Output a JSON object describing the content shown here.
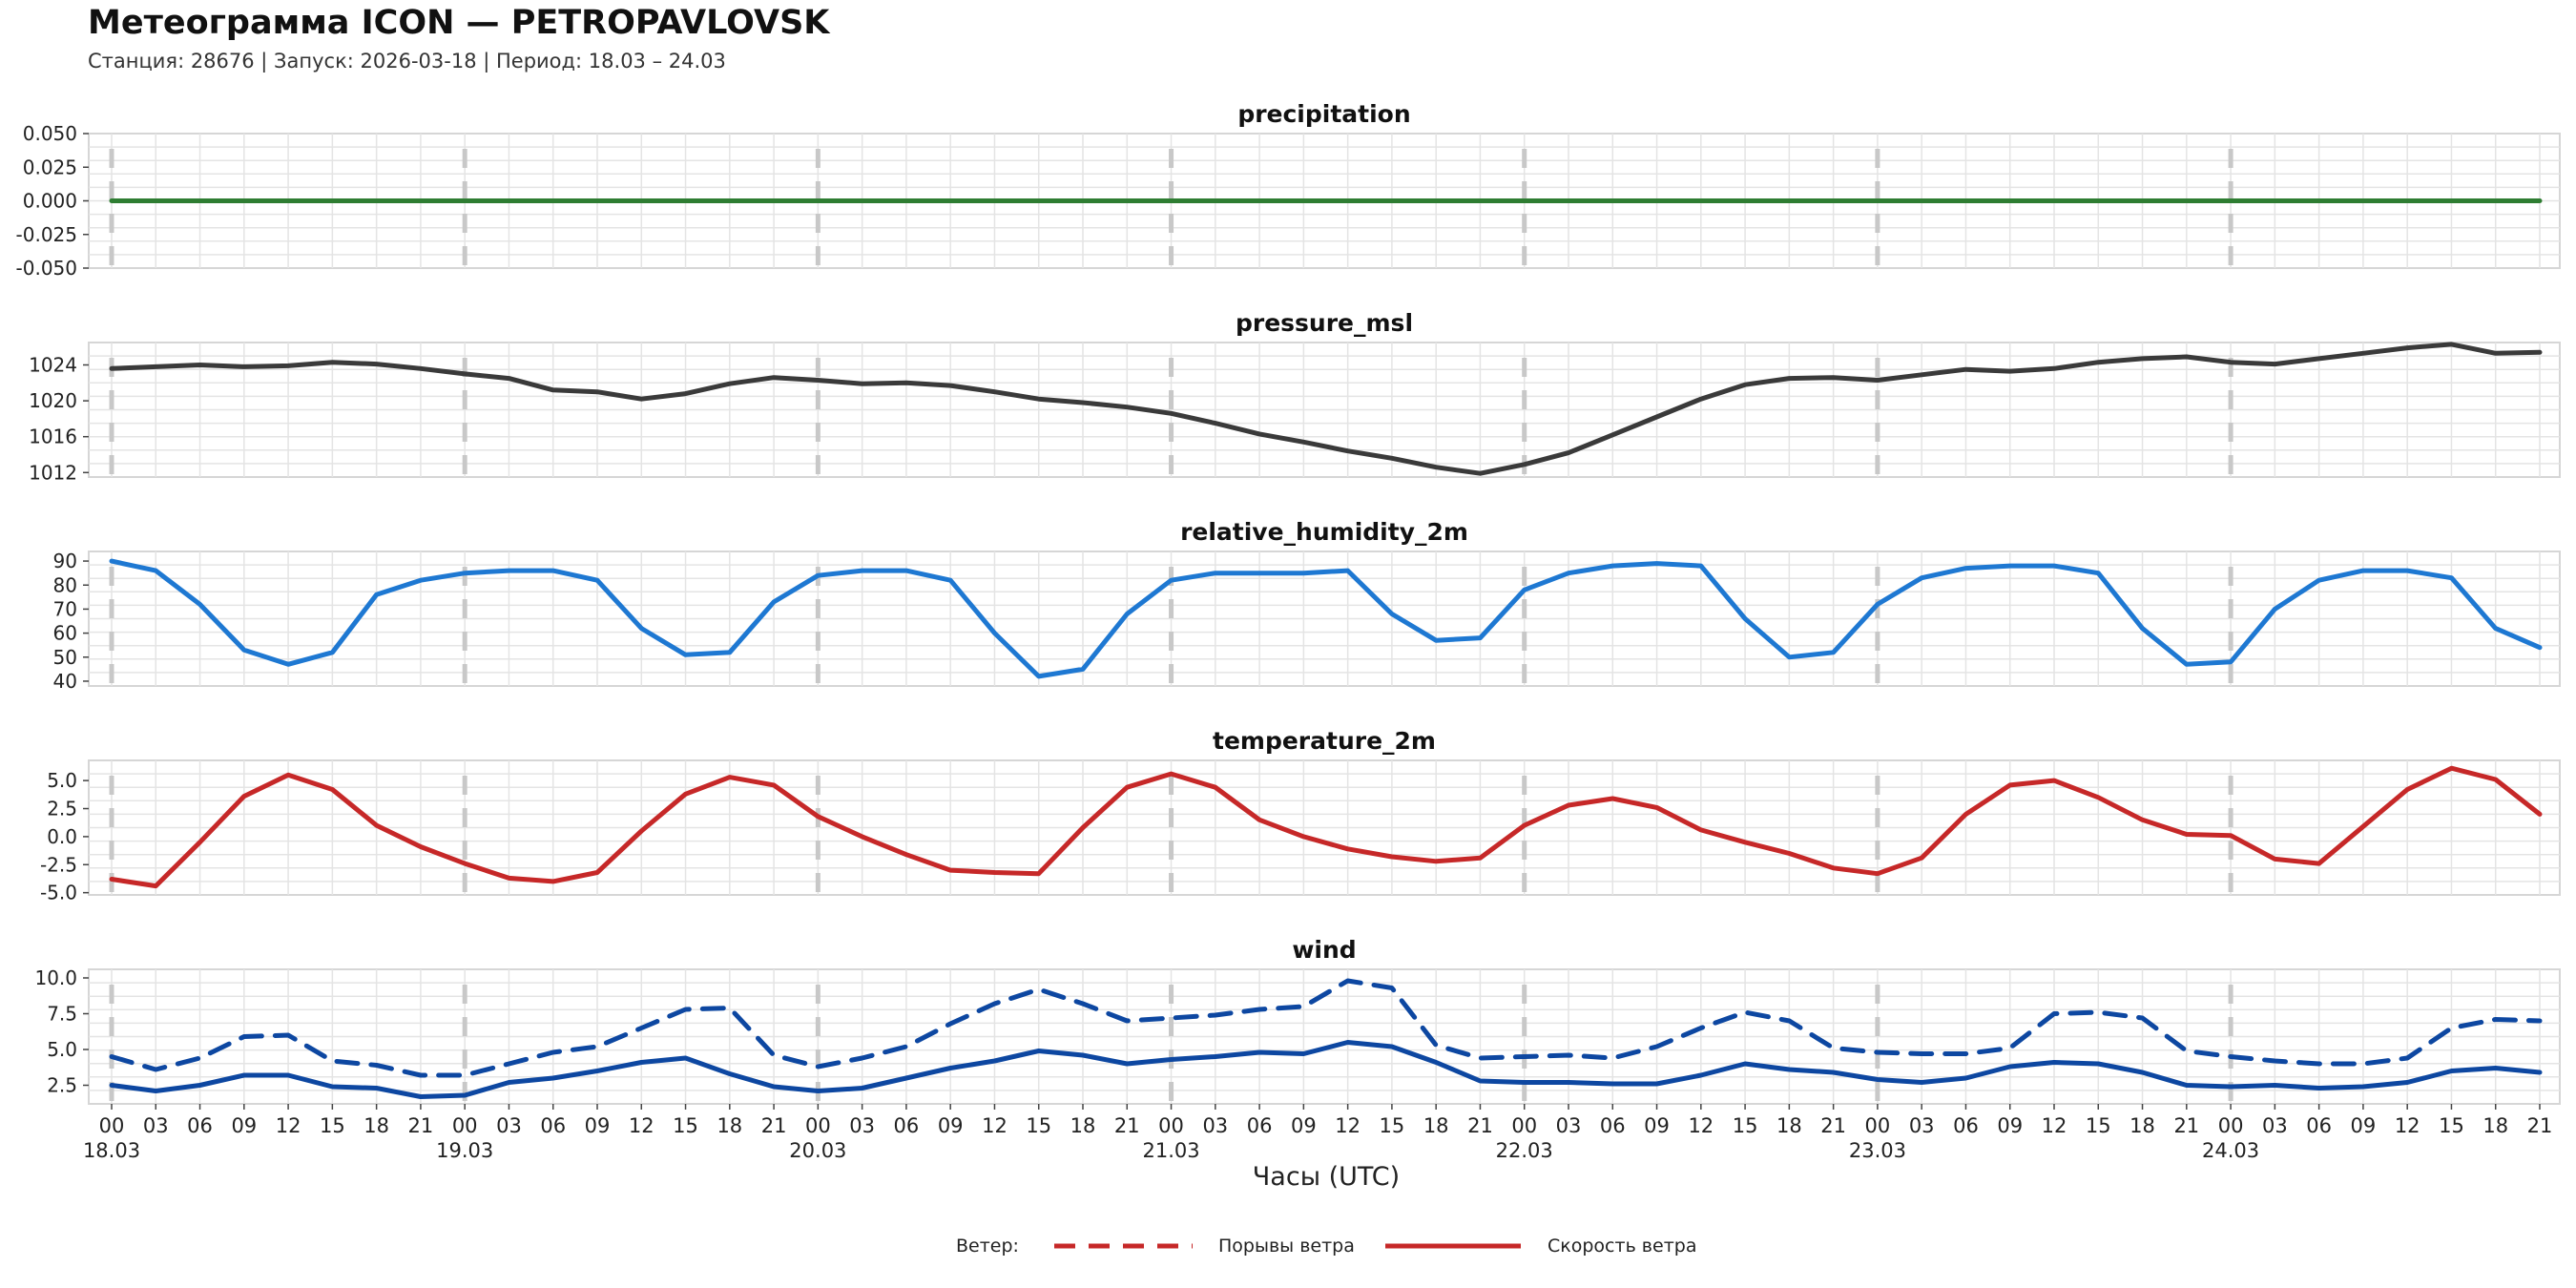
{
  "header": {
    "title": "Метеограмма ICON — PETROPAVLOVSK",
    "subtitle": "Станция: 28676  | Запуск: 2026-03-18  | Период: 18.03 – 24.03"
  },
  "legend": {
    "title": "Ветер:",
    "gust_label": "Порывы ветра",
    "speed_label": "Скорость ветра"
  },
  "colors": {
    "precip": "#2e7d32",
    "pressure": "#3a3a3a",
    "humidity": "#1e78d2",
    "temperature": "#c62828",
    "wind": "#0d47a1",
    "legend_line": "#c62828",
    "grid": "#e4e4e4",
    "day_divider": "#c8c8c8"
  },
  "chart_data": {
    "type": "line",
    "x_label": "Часы (UTC)",
    "x_step_hours": 3,
    "x_hour_ticks": [
      "00",
      "03",
      "06",
      "09",
      "12",
      "15",
      "18",
      "21",
      "00",
      "03",
      "06",
      "09",
      "12",
      "15",
      "18",
      "21",
      "00",
      "03",
      "06",
      "09",
      "12",
      "15",
      "18",
      "21",
      "00",
      "03",
      "06",
      "09",
      "12",
      "15",
      "18",
      "21",
      "00",
      "03",
      "06",
      "09",
      "12",
      "15",
      "18",
      "21",
      "00",
      "03",
      "06",
      "09",
      "12",
      "15",
      "18",
      "21",
      "00",
      "03",
      "06",
      "09",
      "12",
      "15",
      "18",
      "21"
    ],
    "x_day_labels": [
      "18.03",
      "19.03",
      "20.03",
      "21.03",
      "22.03",
      "23.03",
      "24.03"
    ],
    "panels": [
      {
        "key": "precip",
        "title": "precipitation",
        "ylim": [
          -0.05,
          0.05
        ],
        "yticks": [
          0.05,
          0.025,
          0.0,
          -0.025,
          -0.05
        ],
        "ytick_labels": [
          "0.050",
          "0.025",
          "0.000",
          "-0.025",
          "-0.050"
        ],
        "series": [
          {
            "name": "precipitation",
            "color_key": "precip",
            "style": "solid",
            "values": [
              0,
              0,
              0,
              0,
              0,
              0,
              0,
              0,
              0,
              0,
              0,
              0,
              0,
              0,
              0,
              0,
              0,
              0,
              0,
              0,
              0,
              0,
              0,
              0,
              0,
              0,
              0,
              0,
              0,
              0,
              0,
              0,
              0,
              0,
              0,
              0,
              0,
              0,
              0,
              0,
              0,
              0,
              0,
              0,
              0,
              0,
              0,
              0,
              0,
              0,
              0,
              0,
              0,
              0,
              0,
              0
            ]
          }
        ]
      },
      {
        "key": "pressure",
        "title": "pressure_msl",
        "ylim": [
          1011.5,
          1026.5
        ],
        "yticks": [
          1024,
          1020,
          1016,
          1012
        ],
        "ytick_labels": [
          "1024",
          "1020",
          "1016",
          "1012"
        ],
        "series": [
          {
            "name": "pressure_msl",
            "color_key": "pressure",
            "style": "solid",
            "values": [
              1023.6,
              1023.8,
              1024.0,
              1023.8,
              1023.9,
              1024.3,
              1024.1,
              1023.6,
              1023.0,
              1022.5,
              1021.2,
              1021.0,
              1020.2,
              1020.8,
              1021.9,
              1022.6,
              1022.3,
              1021.9,
              1022.0,
              1021.7,
              1021.0,
              1020.2,
              1019.8,
              1019.3,
              1018.6,
              1017.5,
              1016.3,
              1015.4,
              1014.4,
              1013.6,
              1012.6,
              1011.9,
              1012.9,
              1014.2,
              1016.2,
              1018.2,
              1020.2,
              1021.8,
              1022.5,
              1022.6,
              1022.3,
              1022.9,
              1023.5,
              1023.3,
              1023.6,
              1024.3,
              1024.7,
              1024.9,
              1024.3,
              1024.1,
              1024.7,
              1025.3,
              1025.9,
              1026.3,
              1025.3,
              1025.4
            ]
          }
        ]
      },
      {
        "key": "humidity",
        "title": "relative_humidity_2m",
        "ylim": [
          38,
          94
        ],
        "yticks": [
          90,
          80,
          70,
          60,
          50,
          40
        ],
        "ytick_labels": [
          "90",
          "80",
          "70",
          "60",
          "50",
          "40"
        ],
        "series": [
          {
            "name": "relative_humidity_2m",
            "color_key": "humidity",
            "style": "solid",
            "values": [
              90,
              86,
              72,
              53,
              47,
              52,
              76,
              82,
              85,
              86,
              86,
              82,
              62,
              51,
              52,
              73,
              84,
              86,
              86,
              82,
              60,
              42,
              45,
              68,
              82,
              85,
              85,
              85,
              86,
              68,
              57,
              58,
              78,
              85,
              88,
              89,
              88,
              66,
              50,
              52,
              72,
              83,
              87,
              88,
              88,
              85,
              62,
              47,
              48,
              70,
              82,
              86,
              86,
              83,
              62,
              54
            ]
          }
        ]
      },
      {
        "key": "temperature",
        "title": "temperature_2m",
        "ylim": [
          -5.2,
          6.8
        ],
        "yticks": [
          5.0,
          2.5,
          0.0,
          -2.5,
          -5.0
        ],
        "ytick_labels": [
          "5.0",
          "2.5",
          "0.0",
          "-2.5",
          "-5.0"
        ],
        "series": [
          {
            "name": "temperature_2m",
            "color_key": "temperature",
            "style": "solid",
            "values": [
              -3.8,
              -4.4,
              -0.5,
              3.6,
              5.5,
              4.2,
              1.0,
              -0.9,
              -2.4,
              -3.7,
              -4.0,
              -3.2,
              0.5,
              3.8,
              5.3,
              4.6,
              1.8,
              0.0,
              -1.6,
              -3.0,
              -3.2,
              -3.3,
              0.8,
              4.4,
              5.6,
              4.4,
              1.5,
              0.0,
              -1.1,
              -1.8,
              -2.2,
              -1.9,
              1.0,
              2.8,
              3.4,
              2.6,
              0.6,
              -0.5,
              -1.5,
              -2.8,
              -3.3,
              -1.9,
              2.0,
              4.6,
              5.0,
              3.5,
              1.5,
              0.2,
              0.1,
              -2.0,
              -2.4,
              0.9,
              4.2,
              6.1,
              5.1,
              2.0
            ]
          }
        ]
      },
      {
        "key": "wind",
        "title": "wind",
        "ylim": [
          1.2,
          10.6
        ],
        "yticks": [
          10.0,
          7.5,
          5.0,
          2.5
        ],
        "ytick_labels": [
          "10.0",
          "7.5",
          "5.0",
          "2.5"
        ],
        "series": [
          {
            "name": "Порывы ветра",
            "color_key": "wind",
            "style": "dashed",
            "values": [
              4.5,
              3.6,
              4.4,
              5.9,
              6.0,
              4.2,
              3.9,
              3.2,
              3.2,
              4.0,
              4.8,
              5.2,
              6.5,
              7.8,
              7.9,
              4.6,
              3.8,
              4.4,
              5.2,
              6.8,
              8.2,
              9.2,
              8.2,
              7.0,
              7.2,
              7.4,
              7.8,
              8.0,
              9.8,
              9.3,
              5.3,
              4.4,
              4.5,
              4.6,
              4.4,
              5.2,
              6.5,
              7.6,
              7.0,
              5.1,
              4.8,
              4.7,
              4.7,
              5.1,
              7.5,
              7.6,
              7.2,
              4.9,
              4.5,
              4.2,
              4.0,
              4.0,
              4.4,
              6.5,
              7.1,
              7.0
            ]
          },
          {
            "name": "Скорость ветра",
            "color_key": "wind",
            "style": "solid",
            "values": [
              2.5,
              2.1,
              2.5,
              3.2,
              3.2,
              2.4,
              2.3,
              1.7,
              1.8,
              2.7,
              3.0,
              3.5,
              4.1,
              4.4,
              3.3,
              2.4,
              2.1,
              2.3,
              3.0,
              3.7,
              4.2,
              4.9,
              4.6,
              4.0,
              4.3,
              4.5,
              4.8,
              4.7,
              5.5,
              5.2,
              4.1,
              2.8,
              2.7,
              2.7,
              2.6,
              2.6,
              3.2,
              4.0,
              3.6,
              3.4,
              2.9,
              2.7,
              3.0,
              3.8,
              4.1,
              4.0,
              3.4,
              2.5,
              2.4,
              2.5,
              2.3,
              2.4,
              2.7,
              3.5,
              3.7,
              3.4
            ]
          }
        ]
      }
    ]
  }
}
